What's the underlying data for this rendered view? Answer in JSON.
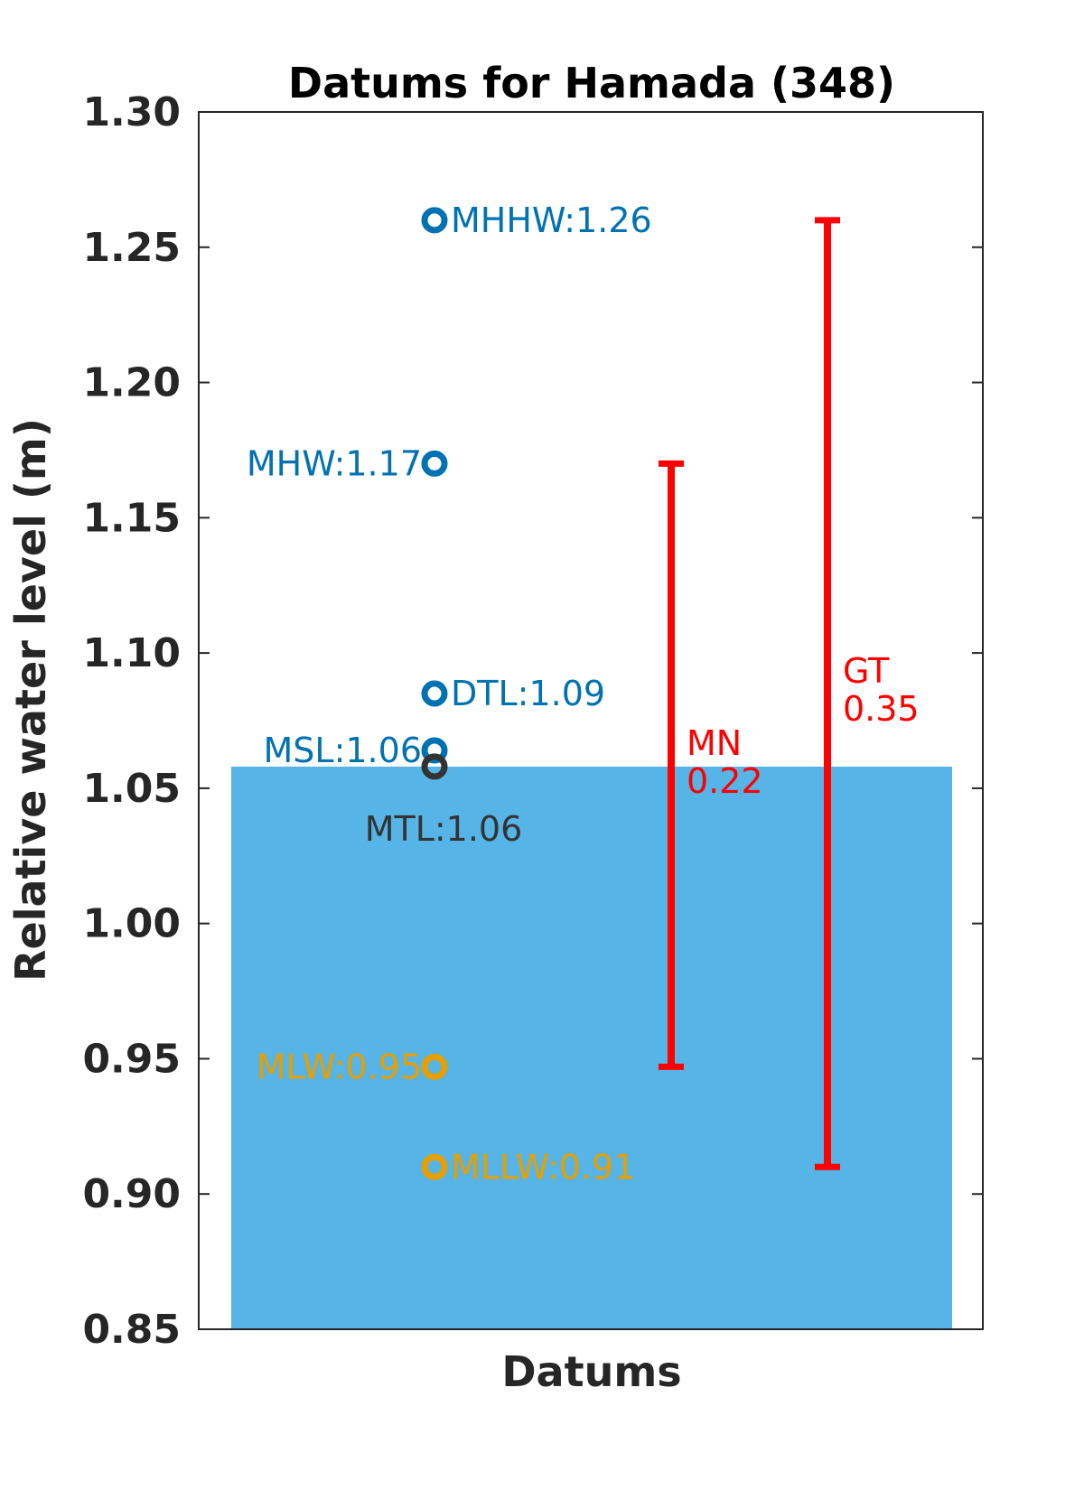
{
  "chart_data": {
    "type": "bar",
    "title": "Datums for Hamada (348)",
    "xlabel": "Datums",
    "ylabel": "Relative water level (m)",
    "ylim": [
      0.85,
      1.3
    ],
    "yticks": [
      "0.85",
      "0.90",
      "0.95",
      "1.00",
      "1.05",
      "1.10",
      "1.15",
      "1.20",
      "1.25",
      "1.30"
    ],
    "grid": false,
    "bar": {
      "value": 1.058,
      "color": "#56B4E6"
    },
    "datums": [
      {
        "name": "MHHW",
        "value": 1.26,
        "label": "MHHW:1.26",
        "color": "#0072B2",
        "label_side": "right"
      },
      {
        "name": "MHW",
        "value": 1.17,
        "label": "MHW:1.17",
        "color": "#0072B2",
        "label_side": "left"
      },
      {
        "name": "DTL",
        "value": 1.085,
        "label": "DTL:1.09",
        "color": "#0072B2",
        "label_side": "right"
      },
      {
        "name": "MSL",
        "value": 1.064,
        "label": "MSL:1.06",
        "color": "#0072B2",
        "label_side": "left"
      },
      {
        "name": "MTL",
        "value": 1.058,
        "label": "MTL:1.06",
        "color": "#333333",
        "label_side": "below"
      },
      {
        "name": "MLW",
        "value": 0.947,
        "label": "MLW:0.95",
        "color": "#E69F00",
        "label_side": "left"
      },
      {
        "name": "MLLW",
        "value": 0.91,
        "label": "MLLW:0.91",
        "color": "#E69F00",
        "label_side": "right"
      }
    ],
    "ranges": [
      {
        "name": "MN",
        "value_text": "0.22",
        "low": 0.947,
        "high": 1.17,
        "color": "#FF0000"
      },
      {
        "name": "GT",
        "value_text": "0.35",
        "low": 0.91,
        "high": 1.26,
        "color": "#FF0000"
      }
    ]
  }
}
